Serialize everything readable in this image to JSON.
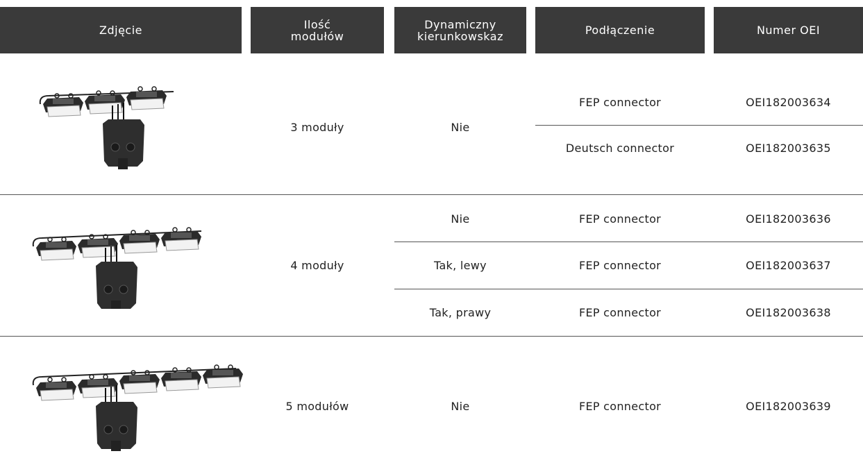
{
  "table": {
    "headers": [
      "Zdjęcie",
      "Ilość modułów",
      "Dynamiczny kierunkowskaz",
      "Podłączenie",
      "Numer OEI"
    ],
    "rows": [
      {
        "modules": "3 moduły",
        "dynamic": "Nie",
        "variants": [
          {
            "connection": "FEP connector",
            "oei": "OEI182003634"
          },
          {
            "connection": "Deutsch connector",
            "oei": "OEI182003635"
          }
        ]
      },
      {
        "modules": "4 moduły",
        "variants": [
          {
            "dynamic": "Nie",
            "connection": "FEP connector",
            "oei": "OEI182003636"
          },
          {
            "dynamic": "Tak, lewy",
            "connection": "FEP connector",
            "oei": "OEI182003637"
          },
          {
            "dynamic": "Tak, prawy",
            "connection": "FEP connector",
            "oei": "OEI182003638"
          }
        ]
      },
      {
        "modules": "5 modułów",
        "dynamic": "Nie",
        "variants": [
          {
            "connection": "FEP connector",
            "oei": "OEI182003639"
          }
        ]
      }
    ]
  }
}
